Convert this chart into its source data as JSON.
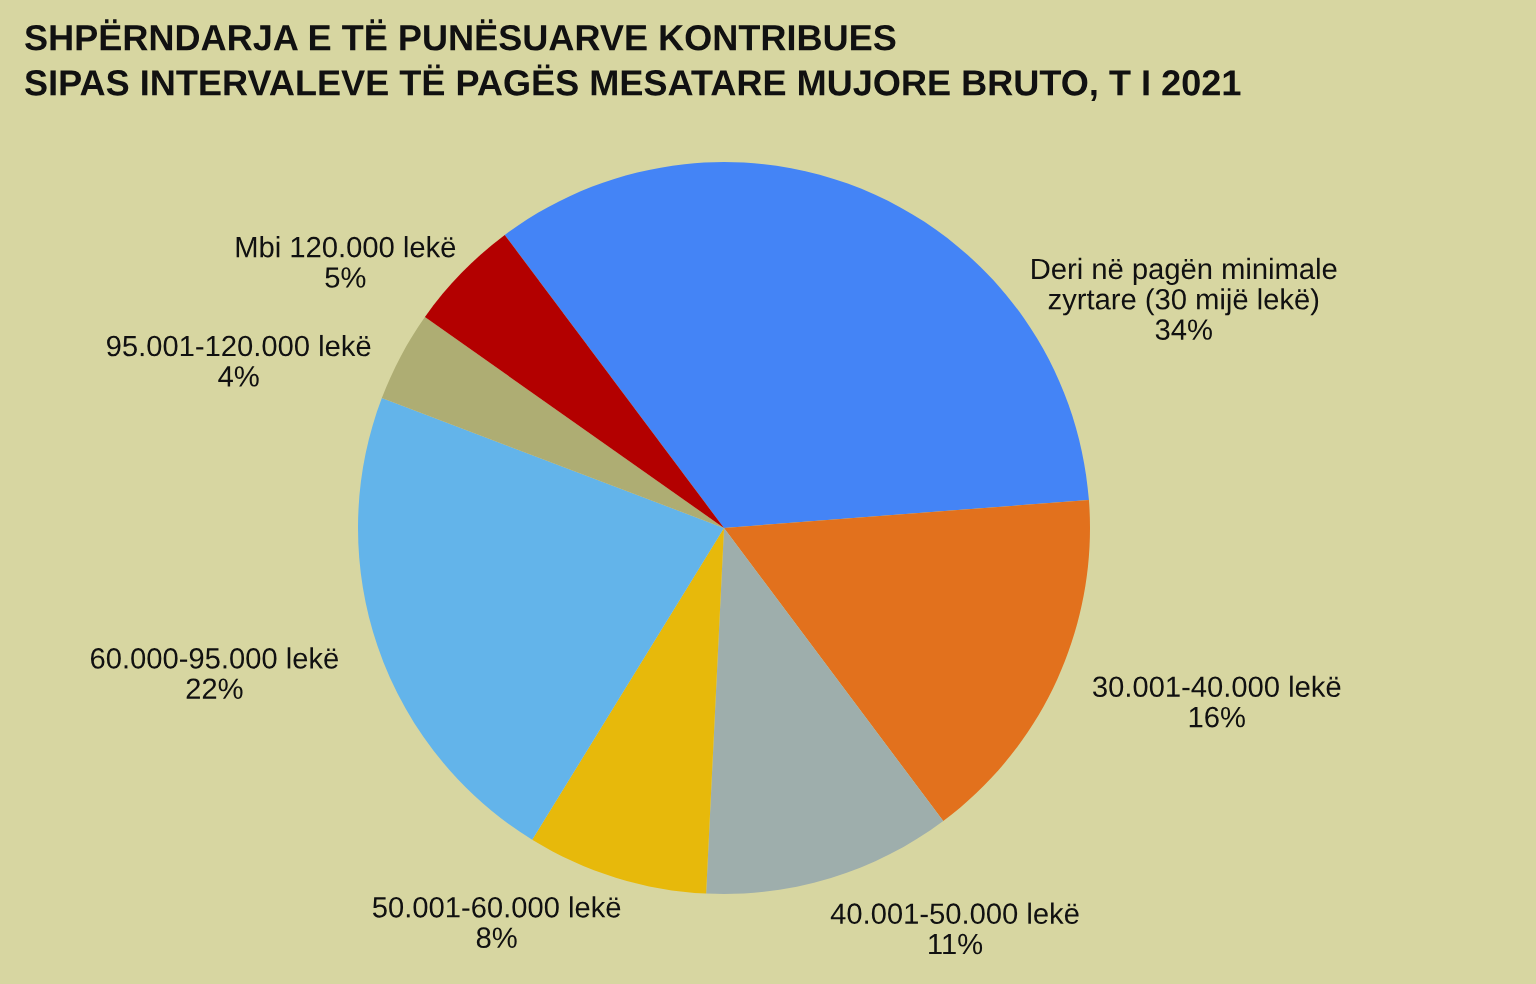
{
  "chart_data": {
    "type": "pie",
    "title": "SHPËRNDARJA E TË PUNËSUARVE KONTRIBUES\nSIPAS INTERVALEVE TË PAGËS MESATARE MUJORE BRUTO, T I 2021",
    "categories": [
      "Deri në pagën minimale\nzyrtare (30 mijë lekë)",
      "30.001-40.000 lekë",
      "40.001-50.000 lekë",
      "50.001-60.000 lekë",
      "60.000-95.000 lekë",
      "95.001-120.000 lekë",
      "Mbi 120.000 lekë"
    ],
    "values": [
      34,
      16,
      11,
      8,
      22,
      4,
      5
    ],
    "value_labels": [
      "34%",
      "16%",
      "11%",
      "8%",
      "22%",
      "4%",
      "5%"
    ],
    "colors": [
      "#4484f6",
      "#e2711d",
      "#9eaeac",
      "#e7b90b",
      "#63b4ea",
      "#aead73",
      "#b30000"
    ]
  }
}
